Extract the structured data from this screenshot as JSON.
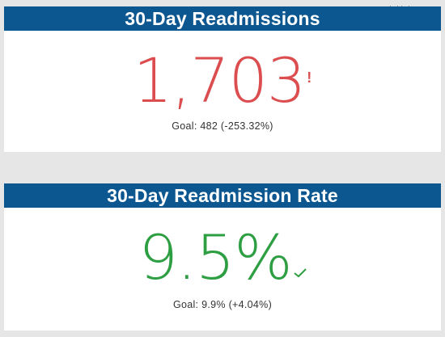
{
  "tiles": [
    {
      "title": "30-Day Readmissions",
      "value": "1,703",
      "status": "bad",
      "indicator": "!",
      "goal": "Goal: 482 (-253.32%)"
    },
    {
      "title": "30-Day Readmission Rate",
      "value": "9.5%",
      "status": "good",
      "indicator": "checkmark-icon",
      "goal": "Goal: 9.9% (+4.04%)"
    }
  ],
  "colors": {
    "header_bg": "#0d5791",
    "bad": "#dc4d4f",
    "good": "#2e9e43",
    "background": "#e6e6e6"
  }
}
